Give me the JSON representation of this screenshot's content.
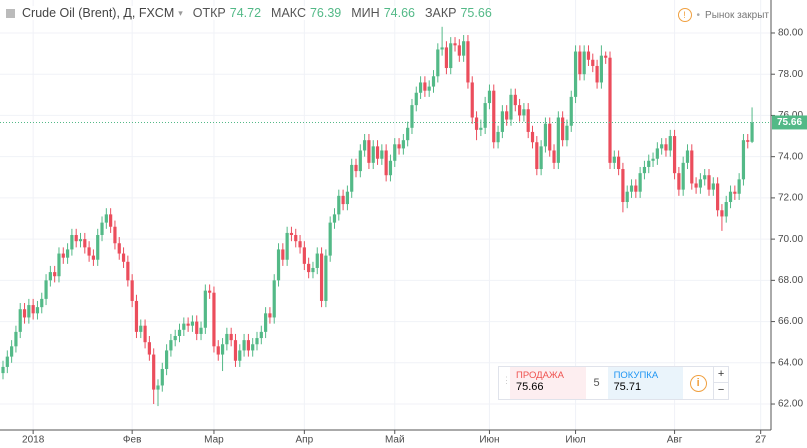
{
  "header": {
    "symbol": "Crude Oil (Brent), Д, FXCM",
    "open_label": "ОТКР",
    "high_label": "МАКС",
    "low_label": "МИН",
    "close_label": "ЗАКР",
    "status": "Рынок закрыт"
  },
  "chart_data": {
    "type": "candlestick",
    "up_color": "#53b987",
    "down_color": "#eb4d5c",
    "grid": true,
    "xlim": [
      -0.7,
      178.4
    ],
    "ylim": [
      60.74,
      81.6
    ],
    "xticks": [
      {
        "value": 7,
        "label": "2018"
      },
      {
        "value": 30,
        "label": "Фев"
      },
      {
        "value": 49,
        "label": "Мар"
      },
      {
        "value": 70,
        "label": "Апр"
      },
      {
        "value": 91,
        "label": "Май"
      },
      {
        "value": 113,
        "label": "Июн"
      },
      {
        "value": 133,
        "label": "Июл"
      },
      {
        "value": 156,
        "label": "Авг"
      },
      {
        "value": 176,
        "label": "27"
      }
    ],
    "yticks": [
      {
        "value": 62,
        "label": "62.00"
      },
      {
        "value": 64,
        "label": "64.00"
      },
      {
        "value": 66,
        "label": "66.00"
      },
      {
        "value": 68,
        "label": "68.00"
      },
      {
        "value": 70,
        "label": "70.00"
      },
      {
        "value": 72,
        "label": "72.00"
      },
      {
        "value": 74,
        "label": "74.00"
      },
      {
        "value": 76,
        "label": "76.00"
      },
      {
        "value": 78,
        "label": "78.00"
      },
      {
        "value": 80,
        "label": "80.00"
      }
    ],
    "candles": [
      [
        63.5,
        64.1,
        63.2,
        63.8
      ],
      [
        63.8,
        64.6,
        63.5,
        64.3
      ],
      [
        64.3,
        65.1,
        64.0,
        64.8
      ],
      [
        64.8,
        65.8,
        64.5,
        65.5
      ],
      [
        65.5,
        66.9,
        65.2,
        66.6
      ],
      [
        66.6,
        66.9,
        65.9,
        66.2
      ],
      [
        66.2,
        67.1,
        65.9,
        66.8
      ],
      [
        66.8,
        67.1,
        66.1,
        66.4
      ],
      [
        66.4,
        67.0,
        66.1,
        66.7
      ],
      [
        66.7,
        67.4,
        66.4,
        67.1
      ],
      [
        67.1,
        68.3,
        66.8,
        68.0
      ],
      [
        68.0,
        68.7,
        67.7,
        68.4
      ],
      [
        68.4,
        68.7,
        67.9,
        68.2
      ],
      [
        68.2,
        69.6,
        67.9,
        69.3
      ],
      [
        69.3,
        69.6,
        68.8,
        69.1
      ],
      [
        69.1,
        69.8,
        68.8,
        69.5
      ],
      [
        69.5,
        70.5,
        69.2,
        70.2
      ],
      [
        70.2,
        70.5,
        69.6,
        69.9
      ],
      [
        69.9,
        70.3,
        69.6,
        70.0
      ],
      [
        70.0,
        70.3,
        69.3,
        69.6
      ],
      [
        69.6,
        69.9,
        68.9,
        69.2
      ],
      [
        69.2,
        69.5,
        68.7,
        69.0
      ],
      [
        69.0,
        70.5,
        68.7,
        70.2
      ],
      [
        70.2,
        71.1,
        69.9,
        70.8
      ],
      [
        70.8,
        71.5,
        70.5,
        71.2
      ],
      [
        71.2,
        71.5,
        70.3,
        70.6
      ],
      [
        70.6,
        70.9,
        69.5,
        69.8
      ],
      [
        69.8,
        70.1,
        69.0,
        69.3
      ],
      [
        69.3,
        69.6,
        68.6,
        68.9
      ],
      [
        68.9,
        69.2,
        67.7,
        68.0
      ],
      [
        68.0,
        68.3,
        66.7,
        67.0
      ],
      [
        67.0,
        67.3,
        65.2,
        65.5
      ],
      [
        65.5,
        66.1,
        65.2,
        65.8
      ],
      [
        65.8,
        66.1,
        64.7,
        65.0
      ],
      [
        65.0,
        65.3,
        64.1,
        64.4
      ],
      [
        64.4,
        64.7,
        62.0,
        62.7
      ],
      [
        62.7,
        63.2,
        61.9,
        62.9
      ],
      [
        62.9,
        64.0,
        62.6,
        63.7
      ],
      [
        63.7,
        64.9,
        63.4,
        64.6
      ],
      [
        64.6,
        65.4,
        64.3,
        65.1
      ],
      [
        65.1,
        65.6,
        64.8,
        65.3
      ],
      [
        65.3,
        65.9,
        65.0,
        65.6
      ],
      [
        65.6,
        66.2,
        65.3,
        65.9
      ],
      [
        65.9,
        66.2,
        65.5,
        65.8
      ],
      [
        65.8,
        66.3,
        65.5,
        66.0
      ],
      [
        66.0,
        66.3,
        65.1,
        65.4
      ],
      [
        65.4,
        66.0,
        65.1,
        65.7
      ],
      [
        65.7,
        67.8,
        65.4,
        67.5
      ],
      [
        67.5,
        67.8,
        67.1,
        67.4
      ],
      [
        67.4,
        67.7,
        64.5,
        64.8
      ],
      [
        64.8,
        65.1,
        64.1,
        64.4
      ],
      [
        64.4,
        65.2,
        63.6,
        64.9
      ],
      [
        64.9,
        65.7,
        64.6,
        65.4
      ],
      [
        65.4,
        65.7,
        64.8,
        65.1
      ],
      [
        65.1,
        65.4,
        63.8,
        64.1
      ],
      [
        64.1,
        64.9,
        63.8,
        64.6
      ],
      [
        64.6,
        65.4,
        64.3,
        65.1
      ],
      [
        65.1,
        65.4,
        64.3,
        64.6
      ],
      [
        64.6,
        65.2,
        64.3,
        64.9
      ],
      [
        64.9,
        65.5,
        64.6,
        65.2
      ],
      [
        65.2,
        65.8,
        64.9,
        65.5
      ],
      [
        65.5,
        66.7,
        65.2,
        66.4
      ],
      [
        66.4,
        66.7,
        65.9,
        66.2
      ],
      [
        66.2,
        68.3,
        65.9,
        68.0
      ],
      [
        68.0,
        69.8,
        67.7,
        69.5
      ],
      [
        69.5,
        69.8,
        68.7,
        69.0
      ],
      [
        69.0,
        70.6,
        68.7,
        70.3
      ],
      [
        70.3,
        70.6,
        69.9,
        70.2
      ],
      [
        70.2,
        70.5,
        69.6,
        69.9
      ],
      [
        69.9,
        70.2,
        69.3,
        69.6
      ],
      [
        69.6,
        69.9,
        68.5,
        68.8
      ],
      [
        68.8,
        69.1,
        68.1,
        68.4
      ],
      [
        68.4,
        68.9,
        68.1,
        68.6
      ],
      [
        68.6,
        69.6,
        68.3,
        69.3
      ],
      [
        69.3,
        69.6,
        66.7,
        67.0
      ],
      [
        67.0,
        69.5,
        66.7,
        69.2
      ],
      [
        69.2,
        71.1,
        68.9,
        70.8
      ],
      [
        70.8,
        71.5,
        70.5,
        71.2
      ],
      [
        71.2,
        72.4,
        70.9,
        72.1
      ],
      [
        72.1,
        72.4,
        71.4,
        71.7
      ],
      [
        71.7,
        72.6,
        71.4,
        72.3
      ],
      [
        72.3,
        73.9,
        72.0,
        73.6
      ],
      [
        73.6,
        73.9,
        73.0,
        73.3
      ],
      [
        73.3,
        74.6,
        73.0,
        74.3
      ],
      [
        74.3,
        75.1,
        74.0,
        74.8
      ],
      [
        74.8,
        75.1,
        73.4,
        73.7
      ],
      [
        73.7,
        74.8,
        73.4,
        74.5
      ],
      [
        74.5,
        74.8,
        73.6,
        73.9
      ],
      [
        73.9,
        74.6,
        73.6,
        74.3
      ],
      [
        74.3,
        74.6,
        72.8,
        73.1
      ],
      [
        73.1,
        74.1,
        72.8,
        73.8
      ],
      [
        73.8,
        74.9,
        73.5,
        74.6
      ],
      [
        74.6,
        74.9,
        74.1,
        74.4
      ],
      [
        74.4,
        75.1,
        74.1,
        74.8
      ],
      [
        74.8,
        75.7,
        74.5,
        75.4
      ],
      [
        75.4,
        76.8,
        75.1,
        76.5
      ],
      [
        76.5,
        77.4,
        76.2,
        77.1
      ],
      [
        77.1,
        77.9,
        76.8,
        77.6
      ],
      [
        77.6,
        77.9,
        76.9,
        77.2
      ],
      [
        77.2,
        77.7,
        76.9,
        77.4
      ],
      [
        77.4,
        78.2,
        77.1,
        77.9
      ],
      [
        77.9,
        79.5,
        77.6,
        79.2
      ],
      [
        79.2,
        80.3,
        78.9,
        79.3
      ],
      [
        79.3,
        79.6,
        78.0,
        78.3
      ],
      [
        78.3,
        79.8,
        78.0,
        79.5
      ],
      [
        79.5,
        79.8,
        79.1,
        79.4
      ],
      [
        79.4,
        79.7,
        78.6,
        78.9
      ],
      [
        78.9,
        79.9,
        78.6,
        79.6
      ],
      [
        79.6,
        79.9,
        77.3,
        77.6
      ],
      [
        77.6,
        77.9,
        75.6,
        75.9
      ],
      [
        75.9,
        76.2,
        74.8,
        75.3
      ],
      [
        75.3,
        75.8,
        75.0,
        75.4
      ],
      [
        75.4,
        76.9,
        75.1,
        76.6
      ],
      [
        76.6,
        77.5,
        76.3,
        77.2
      ],
      [
        77.2,
        77.5,
        74.4,
        74.7
      ],
      [
        74.7,
        75.5,
        74.4,
        75.2
      ],
      [
        75.2,
        76.5,
        74.9,
        76.2
      ],
      [
        76.2,
        76.5,
        75.5,
        75.8
      ],
      [
        75.8,
        77.3,
        75.5,
        77.0
      ],
      [
        77.0,
        77.3,
        76.2,
        76.5
      ],
      [
        76.5,
        76.8,
        75.7,
        76.0
      ],
      [
        76.0,
        76.6,
        75.7,
        76.3
      ],
      [
        76.3,
        76.6,
        74.9,
        75.2
      ],
      [
        75.2,
        75.5,
        74.4,
        74.7
      ],
      [
        74.7,
        75.0,
        73.1,
        73.4
      ],
      [
        73.4,
        74.8,
        73.1,
        74.5
      ],
      [
        74.5,
        75.9,
        74.2,
        75.6
      ],
      [
        75.6,
        75.9,
        74.0,
        74.3
      ],
      [
        74.3,
        74.6,
        73.4,
        73.7
      ],
      [
        73.7,
        76.2,
        73.4,
        75.9
      ],
      [
        75.9,
        76.2,
        74.5,
        74.8
      ],
      [
        74.8,
        75.8,
        74.5,
        75.5
      ],
      [
        75.5,
        77.2,
        75.2,
        76.9
      ],
      [
        76.9,
        79.4,
        76.6,
        79.1
      ],
      [
        79.1,
        79.4,
        77.7,
        78.0
      ],
      [
        78.0,
        79.4,
        77.7,
        79.1
      ],
      [
        79.1,
        79.4,
        78.4,
        78.7
      ],
      [
        78.7,
        79.0,
        78.1,
        78.4
      ],
      [
        78.4,
        78.7,
        77.3,
        77.6
      ],
      [
        77.6,
        79.4,
        77.3,
        78.9
      ],
      [
        78.9,
        79.1,
        78.5,
        78.8
      ],
      [
        78.8,
        79.1,
        73.4,
        73.7
      ],
      [
        73.7,
        74.3,
        73.4,
        74.0
      ],
      [
        74.0,
        74.3,
        73.1,
        73.4
      ],
      [
        73.4,
        73.7,
        71.3,
        71.8
      ],
      [
        71.8,
        72.6,
        71.5,
        72.3
      ],
      [
        72.3,
        72.9,
        72.0,
        72.6
      ],
      [
        72.6,
        72.9,
        72.0,
        72.3
      ],
      [
        72.3,
        73.5,
        72.0,
        73.2
      ],
      [
        73.2,
        73.8,
        72.9,
        73.5
      ],
      [
        73.5,
        74.1,
        73.2,
        73.8
      ],
      [
        73.8,
        74.2,
        73.5,
        73.9
      ],
      [
        73.9,
        74.7,
        73.6,
        74.4
      ],
      [
        74.4,
        74.9,
        74.1,
        74.6
      ],
      [
        74.6,
        74.9,
        74.0,
        74.3
      ],
      [
        74.3,
        75.3,
        74.0,
        75.0
      ],
      [
        75.0,
        75.3,
        72.9,
        73.2
      ],
      [
        73.2,
        73.5,
        72.1,
        72.4
      ],
      [
        72.4,
        74.0,
        72.1,
        73.7
      ],
      [
        73.7,
        74.6,
        73.4,
        74.3
      ],
      [
        74.3,
        74.6,
        72.4,
        72.7
      ],
      [
        72.7,
        73.0,
        72.2,
        72.5
      ],
      [
        72.5,
        73.2,
        72.2,
        72.9
      ],
      [
        72.9,
        73.4,
        72.6,
        73.1
      ],
      [
        73.1,
        73.4,
        72.1,
        72.4
      ],
      [
        72.4,
        73.0,
        72.1,
        72.7
      ],
      [
        72.7,
        73.0,
        71.1,
        71.4
      ],
      [
        71.4,
        71.7,
        70.4,
        71.1
      ],
      [
        71.1,
        72.1,
        70.8,
        71.8
      ],
      [
        71.8,
        72.6,
        71.5,
        72.3
      ],
      [
        72.3,
        72.6,
        71.9,
        72.2
      ],
      [
        72.2,
        73.2,
        71.9,
        72.9
      ],
      [
        72.9,
        75.1,
        72.6,
        74.8
      ],
      [
        74.8,
        75.1,
        74.4,
        74.72
      ],
      [
        74.72,
        76.39,
        74.66,
        75.66
      ]
    ]
  },
  "trade_panel": {
    "sell_label": "ПРОДАЖА",
    "sell_price": 75.66,
    "spread": 5,
    "buy_label": "ПОКУПКА",
    "buy_price": 75.71
  }
}
